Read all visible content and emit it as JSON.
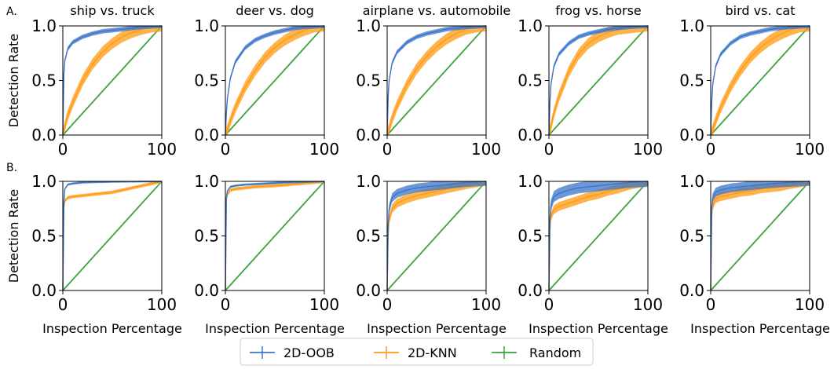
{
  "figure": {
    "row_labels": [
      "A.",
      "B."
    ],
    "ylabel": "Detection Rate",
    "xlabel": "Inspection Percentage"
  },
  "legend": {
    "placement": "bottom-center",
    "items": [
      {
        "label": "2D-OOB",
        "color": "#3a74c9"
      },
      {
        "label": "2D-KNN",
        "color": "#ff9a12"
      },
      {
        "label": "Random",
        "color": "#3ca03c"
      }
    ]
  },
  "chart_data": [
    {
      "type": "line",
      "row": "A.",
      "title": "ship vs. truck",
      "xlabel": "",
      "ylabel": "Detection Rate",
      "xlim": [
        0,
        100
      ],
      "ylim": [
        0,
        1
      ],
      "xticks": [
        0,
        100
      ],
      "yticks": [
        0.0,
        0.5,
        1.0
      ],
      "x": [
        0,
        1,
        2,
        5,
        10,
        20,
        30,
        40,
        50,
        60,
        70,
        80,
        90,
        100
      ],
      "series": [
        {
          "name": "2D-OOB",
          "values": [
            0,
            0.55,
            0.68,
            0.79,
            0.85,
            0.9,
            0.93,
            0.95,
            0.96,
            0.97,
            0.98,
            0.99,
            0.995,
            1.0
          ],
          "band": 0.02
        },
        {
          "name": "2D-KNN",
          "values": [
            0,
            0.04,
            0.08,
            0.18,
            0.3,
            0.5,
            0.65,
            0.76,
            0.84,
            0.9,
            0.94,
            0.97,
            0.99,
            1.0
          ],
          "band": 0.05
        },
        {
          "name": "Random",
          "values": [
            0,
            0.01,
            0.02,
            0.05,
            0.1,
            0.2,
            0.3,
            0.4,
            0.5,
            0.6,
            0.7,
            0.8,
            0.9,
            1.0
          ],
          "band": 0.01
        }
      ]
    },
    {
      "type": "line",
      "row": "A.",
      "title": "deer vs. dog",
      "xlabel": "",
      "ylabel": "",
      "xlim": [
        0,
        100
      ],
      "ylim": [
        0,
        1
      ],
      "xticks": [
        0,
        100
      ],
      "yticks": [
        0.0,
        0.5,
        1.0
      ],
      "x": [
        0,
        1,
        2,
        5,
        10,
        20,
        30,
        40,
        50,
        60,
        70,
        80,
        90,
        100
      ],
      "series": [
        {
          "name": "2D-OOB",
          "values": [
            0,
            0.2,
            0.33,
            0.52,
            0.67,
            0.8,
            0.87,
            0.91,
            0.94,
            0.96,
            0.98,
            0.99,
            0.995,
            1.0
          ],
          "band": 0.02
        },
        {
          "name": "2D-KNN",
          "values": [
            0,
            0.02,
            0.05,
            0.13,
            0.25,
            0.44,
            0.59,
            0.71,
            0.8,
            0.87,
            0.92,
            0.96,
            0.99,
            1.0
          ],
          "band": 0.05
        },
        {
          "name": "Random",
          "values": [
            0,
            0.01,
            0.02,
            0.05,
            0.1,
            0.2,
            0.3,
            0.4,
            0.5,
            0.6,
            0.7,
            0.8,
            0.9,
            1.0
          ],
          "band": 0.01
        }
      ]
    },
    {
      "type": "line",
      "row": "A.",
      "title": "airplane vs. automobile",
      "xlabel": "",
      "ylabel": "",
      "xlim": [
        0,
        100
      ],
      "ylim": [
        0,
        1
      ],
      "xticks": [
        0,
        100
      ],
      "yticks": [
        0.0,
        0.5,
        1.0
      ],
      "x": [
        0,
        1,
        2,
        5,
        10,
        20,
        30,
        40,
        50,
        60,
        70,
        80,
        90,
        100
      ],
      "series": [
        {
          "name": "2D-OOB",
          "values": [
            0,
            0.35,
            0.5,
            0.66,
            0.76,
            0.85,
            0.9,
            0.93,
            0.95,
            0.97,
            0.98,
            0.99,
            0.995,
            1.0
          ],
          "band": 0.02
        },
        {
          "name": "2D-KNN",
          "values": [
            0,
            0.03,
            0.06,
            0.15,
            0.27,
            0.46,
            0.61,
            0.72,
            0.81,
            0.88,
            0.93,
            0.97,
            0.99,
            1.0
          ],
          "band": 0.05
        },
        {
          "name": "Random",
          "values": [
            0,
            0.01,
            0.02,
            0.05,
            0.1,
            0.2,
            0.3,
            0.4,
            0.5,
            0.6,
            0.7,
            0.8,
            0.9,
            1.0
          ],
          "band": 0.01
        }
      ]
    },
    {
      "type": "line",
      "row": "A.",
      "title": "frog vs. horse",
      "xlabel": "",
      "ylabel": "",
      "xlim": [
        0,
        100
      ],
      "ylim": [
        0,
        1
      ],
      "xticks": [
        0,
        100
      ],
      "yticks": [
        0.0,
        0.5,
        1.0
      ],
      "x": [
        0,
        1,
        2,
        5,
        10,
        20,
        30,
        40,
        50,
        60,
        70,
        80,
        90,
        100
      ],
      "series": [
        {
          "name": "2D-OOB",
          "values": [
            0,
            0.3,
            0.46,
            0.63,
            0.74,
            0.84,
            0.9,
            0.93,
            0.95,
            0.97,
            0.98,
            0.99,
            0.995,
            1.0
          ],
          "band": 0.02
        },
        {
          "name": "2D-KNN",
          "values": [
            0,
            0.04,
            0.08,
            0.2,
            0.35,
            0.58,
            0.74,
            0.84,
            0.9,
            0.94,
            0.97,
            0.98,
            0.99,
            1.0
          ],
          "band": 0.05
        },
        {
          "name": "Random",
          "values": [
            0,
            0.01,
            0.02,
            0.05,
            0.1,
            0.2,
            0.3,
            0.4,
            0.5,
            0.6,
            0.7,
            0.8,
            0.9,
            1.0
          ],
          "band": 0.01
        }
      ]
    },
    {
      "type": "line",
      "row": "A.",
      "title": "bird vs. cat",
      "xlabel": "",
      "ylabel": "",
      "xlim": [
        0,
        100
      ],
      "ylim": [
        0,
        1
      ],
      "xticks": [
        0,
        100
      ],
      "yticks": [
        0.0,
        0.5,
        1.0
      ],
      "x": [
        0,
        1,
        2,
        5,
        10,
        20,
        30,
        40,
        50,
        60,
        70,
        80,
        90,
        100
      ],
      "series": [
        {
          "name": "2D-OOB",
          "values": [
            0,
            0.3,
            0.46,
            0.63,
            0.74,
            0.84,
            0.9,
            0.93,
            0.95,
            0.97,
            0.98,
            0.99,
            0.995,
            1.0
          ],
          "band": 0.02
        },
        {
          "name": "2D-KNN",
          "values": [
            0,
            0.02,
            0.05,
            0.13,
            0.25,
            0.44,
            0.59,
            0.71,
            0.8,
            0.87,
            0.92,
            0.96,
            0.99,
            1.0
          ],
          "band": 0.05
        },
        {
          "name": "Random",
          "values": [
            0,
            0.01,
            0.02,
            0.05,
            0.1,
            0.2,
            0.3,
            0.4,
            0.5,
            0.6,
            0.7,
            0.8,
            0.9,
            1.0
          ],
          "band": 0.01
        }
      ]
    },
    {
      "type": "line",
      "row": "B.",
      "title": "",
      "xlabel": "Inspection Percentage",
      "ylabel": "Detection Rate",
      "xlim": [
        0,
        100
      ],
      "ylim": [
        0,
        1
      ],
      "xticks": [
        0,
        100
      ],
      "yticks": [
        0.0,
        0.5,
        1.0
      ],
      "x": [
        0,
        1,
        2,
        5,
        10,
        20,
        30,
        40,
        50,
        60,
        70,
        80,
        90,
        100
      ],
      "series": [
        {
          "name": "2D-OOB",
          "values": [
            0,
            0.8,
            0.93,
            0.97,
            0.98,
            0.99,
            0.993,
            0.995,
            0.997,
            0.998,
            0.999,
            1.0,
            1.0,
            1.0
          ],
          "band": 0.01
        },
        {
          "name": "2D-KNN",
          "values": [
            0,
            0.75,
            0.82,
            0.85,
            0.86,
            0.87,
            0.88,
            0.89,
            0.9,
            0.92,
            0.94,
            0.96,
            0.98,
            1.0
          ],
          "band": 0.015
        },
        {
          "name": "Random",
          "values": [
            0,
            0.01,
            0.02,
            0.05,
            0.1,
            0.2,
            0.3,
            0.4,
            0.5,
            0.6,
            0.7,
            0.8,
            0.9,
            1.0
          ],
          "band": 0.01
        }
      ]
    },
    {
      "type": "line",
      "row": "B.",
      "title": "",
      "xlabel": "Inspection Percentage",
      "ylabel": "",
      "xlim": [
        0,
        100
      ],
      "ylim": [
        0,
        1
      ],
      "xticks": [
        0,
        100
      ],
      "yticks": [
        0.0,
        0.5,
        1.0
      ],
      "x": [
        0,
        1,
        2,
        5,
        10,
        20,
        30,
        40,
        50,
        60,
        70,
        80,
        90,
        100
      ],
      "series": [
        {
          "name": "2D-OOB",
          "values": [
            0,
            0.85,
            0.91,
            0.95,
            0.96,
            0.97,
            0.975,
            0.98,
            0.985,
            0.99,
            0.993,
            0.996,
            0.998,
            1.0
          ],
          "band": 0.01
        },
        {
          "name": "2D-KNN",
          "values": [
            0,
            0.83,
            0.88,
            0.92,
            0.93,
            0.94,
            0.95,
            0.955,
            0.96,
            0.967,
            0.975,
            0.983,
            0.99,
            1.0
          ],
          "band": 0.015
        },
        {
          "name": "Random",
          "values": [
            0,
            0.01,
            0.02,
            0.05,
            0.1,
            0.2,
            0.3,
            0.4,
            0.5,
            0.6,
            0.7,
            0.8,
            0.9,
            1.0
          ],
          "band": 0.01
        }
      ]
    },
    {
      "type": "line",
      "row": "B.",
      "title": "",
      "xlabel": "Inspection Percentage",
      "ylabel": "",
      "xlim": [
        0,
        100
      ],
      "ylim": [
        0,
        1
      ],
      "xticks": [
        0,
        100
      ],
      "yticks": [
        0.0,
        0.5,
        1.0
      ],
      "x": [
        0,
        1,
        2,
        5,
        10,
        20,
        30,
        40,
        50,
        60,
        70,
        80,
        90,
        100
      ],
      "series": [
        {
          "name": "2D-OOB",
          "values": [
            0,
            0.6,
            0.75,
            0.85,
            0.89,
            0.92,
            0.94,
            0.95,
            0.96,
            0.97,
            0.98,
            0.99,
            0.995,
            1.0
          ],
          "band": 0.04
        },
        {
          "name": "2D-KNN",
          "values": [
            0,
            0.5,
            0.65,
            0.75,
            0.8,
            0.84,
            0.87,
            0.89,
            0.91,
            0.93,
            0.95,
            0.97,
            0.985,
            1.0
          ],
          "band": 0.04
        },
        {
          "name": "Random",
          "values": [
            0,
            0.01,
            0.02,
            0.05,
            0.1,
            0.2,
            0.3,
            0.4,
            0.5,
            0.6,
            0.7,
            0.8,
            0.9,
            1.0
          ],
          "band": 0.01
        }
      ]
    },
    {
      "type": "line",
      "row": "B.",
      "title": "",
      "xlabel": "Inspection Percentage",
      "ylabel": "",
      "xlim": [
        0,
        100
      ],
      "ylim": [
        0,
        1
      ],
      "xticks": [
        0,
        100
      ],
      "yticks": [
        0.0,
        0.5,
        1.0
      ],
      "x": [
        0,
        1,
        2,
        5,
        10,
        20,
        30,
        40,
        50,
        60,
        70,
        80,
        90,
        100
      ],
      "series": [
        {
          "name": "2D-OOB",
          "values": [
            0,
            0.65,
            0.78,
            0.86,
            0.89,
            0.92,
            0.94,
            0.95,
            0.96,
            0.97,
            0.98,
            0.99,
            0.995,
            1.0
          ],
          "band": 0.05
        },
        {
          "name": "2D-KNN",
          "values": [
            0,
            0.55,
            0.68,
            0.74,
            0.77,
            0.8,
            0.83,
            0.86,
            0.88,
            0.91,
            0.93,
            0.96,
            0.98,
            1.0
          ],
          "band": 0.04
        },
        {
          "name": "Random",
          "values": [
            0,
            0.01,
            0.02,
            0.05,
            0.1,
            0.2,
            0.3,
            0.4,
            0.5,
            0.6,
            0.7,
            0.8,
            0.9,
            1.0
          ],
          "band": 0.01
        }
      ]
    },
    {
      "type": "line",
      "row": "B.",
      "title": "",
      "xlabel": "Inspection Percentage",
      "ylabel": "",
      "xlim": [
        0,
        100
      ],
      "ylim": [
        0,
        1
      ],
      "xticks": [
        0,
        100
      ],
      "yticks": [
        0.0,
        0.5,
        1.0
      ],
      "x": [
        0,
        1,
        2,
        5,
        10,
        20,
        30,
        40,
        50,
        60,
        70,
        80,
        90,
        100
      ],
      "series": [
        {
          "name": "2D-OOB",
          "values": [
            0,
            0.75,
            0.85,
            0.9,
            0.92,
            0.94,
            0.95,
            0.96,
            0.97,
            0.98,
            0.985,
            0.99,
            0.995,
            1.0
          ],
          "band": 0.04
        },
        {
          "name": "2D-KNN",
          "values": [
            0,
            0.68,
            0.78,
            0.84,
            0.86,
            0.88,
            0.9,
            0.91,
            0.93,
            0.94,
            0.95,
            0.97,
            0.985,
            1.0
          ],
          "band": 0.04
        },
        {
          "name": "Random",
          "values": [
            0,
            0.01,
            0.02,
            0.05,
            0.1,
            0.2,
            0.3,
            0.4,
            0.5,
            0.6,
            0.7,
            0.8,
            0.9,
            1.0
          ],
          "band": 0.01
        }
      ]
    }
  ]
}
